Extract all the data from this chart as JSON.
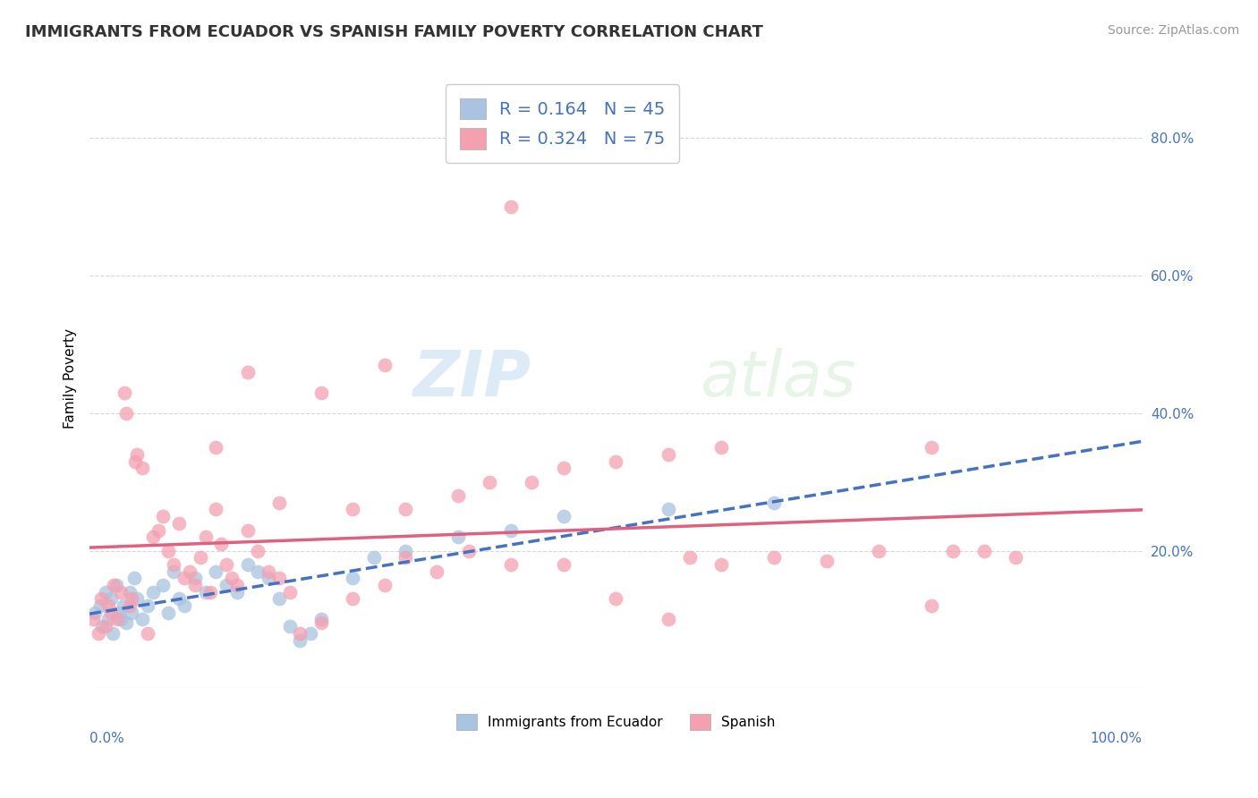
{
  "title": "IMMIGRANTS FROM ECUADOR VS SPANISH FAMILY POVERTY CORRELATION CHART",
  "source_text": "Source: ZipAtlas.com",
  "ylabel": "Family Poverty",
  "legend_r1": "R = 0.164",
  "legend_n1": "N = 45",
  "legend_r2": "R = 0.324",
  "legend_n2": "N = 75",
  "watermark_zip": "ZIP",
  "watermark_atlas": "atlas",
  "ecuador_color": "#a8c4e0",
  "spanish_color": "#f4a0b0",
  "ecuador_line_color": "#4472c4",
  "spanish_line_color": "#e06080",
  "right_axis_color": "#4472c4",
  "ecuador_points": [
    [
      0.5,
      11.0
    ],
    [
      1.0,
      12.0
    ],
    [
      1.2,
      9.0
    ],
    [
      1.5,
      14.0
    ],
    [
      1.8,
      10.0
    ],
    [
      2.0,
      13.0
    ],
    [
      2.2,
      8.0
    ],
    [
      2.5,
      15.0
    ],
    [
      2.8,
      11.0
    ],
    [
      3.0,
      10.0
    ],
    [
      3.2,
      12.0
    ],
    [
      3.5,
      9.5
    ],
    [
      3.8,
      14.0
    ],
    [
      4.0,
      11.0
    ],
    [
      4.2,
      16.0
    ],
    [
      4.5,
      13.0
    ],
    [
      5.0,
      10.0
    ],
    [
      5.5,
      12.0
    ],
    [
      6.0,
      14.0
    ],
    [
      7.0,
      15.0
    ],
    [
      7.5,
      11.0
    ],
    [
      8.0,
      17.0
    ],
    [
      8.5,
      13.0
    ],
    [
      9.0,
      12.0
    ],
    [
      10.0,
      16.0
    ],
    [
      11.0,
      14.0
    ],
    [
      12.0,
      17.0
    ],
    [
      13.0,
      15.0
    ],
    [
      14.0,
      14.0
    ],
    [
      15.0,
      18.0
    ],
    [
      16.0,
      17.0
    ],
    [
      17.0,
      16.0
    ],
    [
      18.0,
      13.0
    ],
    [
      19.0,
      9.0
    ],
    [
      20.0,
      7.0
    ],
    [
      21.0,
      8.0
    ],
    [
      22.0,
      10.0
    ],
    [
      25.0,
      16.0
    ],
    [
      27.0,
      19.0
    ],
    [
      30.0,
      20.0
    ],
    [
      35.0,
      22.0
    ],
    [
      40.0,
      23.0
    ],
    [
      45.0,
      25.0
    ],
    [
      55.0,
      26.0
    ],
    [
      65.0,
      27.0
    ]
  ],
  "spanish_points": [
    [
      0.3,
      10.0
    ],
    [
      0.8,
      8.0
    ],
    [
      1.1,
      13.0
    ],
    [
      1.5,
      9.0
    ],
    [
      1.8,
      12.0
    ],
    [
      2.0,
      11.0
    ],
    [
      2.3,
      15.0
    ],
    [
      2.6,
      10.0
    ],
    [
      3.0,
      14.0
    ],
    [
      3.3,
      43.0
    ],
    [
      3.5,
      40.0
    ],
    [
      3.8,
      12.0
    ],
    [
      4.0,
      13.0
    ],
    [
      4.3,
      33.0
    ],
    [
      4.5,
      34.0
    ],
    [
      5.0,
      32.0
    ],
    [
      5.5,
      8.0
    ],
    [
      6.0,
      22.0
    ],
    [
      6.5,
      23.0
    ],
    [
      7.0,
      25.0
    ],
    [
      7.5,
      20.0
    ],
    [
      8.0,
      18.0
    ],
    [
      8.5,
      24.0
    ],
    [
      9.0,
      16.0
    ],
    [
      9.5,
      17.0
    ],
    [
      10.0,
      15.0
    ],
    [
      10.5,
      19.0
    ],
    [
      11.0,
      22.0
    ],
    [
      11.5,
      14.0
    ],
    [
      12.0,
      35.0
    ],
    [
      12.5,
      21.0
    ],
    [
      13.0,
      18.0
    ],
    [
      13.5,
      16.0
    ],
    [
      14.0,
      15.0
    ],
    [
      15.0,
      23.0
    ],
    [
      16.0,
      20.0
    ],
    [
      17.0,
      17.0
    ],
    [
      18.0,
      16.0
    ],
    [
      19.0,
      14.0
    ],
    [
      20.0,
      8.0
    ],
    [
      22.0,
      9.5
    ],
    [
      25.0,
      13.0
    ],
    [
      28.0,
      15.0
    ],
    [
      30.0,
      19.0
    ],
    [
      33.0,
      17.0
    ],
    [
      36.0,
      20.0
    ],
    [
      40.0,
      18.0
    ],
    [
      45.0,
      18.0
    ],
    [
      50.0,
      13.0
    ],
    [
      55.0,
      10.0
    ],
    [
      57.0,
      19.0
    ],
    [
      60.0,
      18.0
    ],
    [
      65.0,
      19.0
    ],
    [
      70.0,
      18.5
    ],
    [
      75.0,
      20.0
    ],
    [
      80.0,
      12.0
    ],
    [
      82.0,
      20.0
    ],
    [
      85.0,
      20.0
    ],
    [
      88.0,
      19.0
    ],
    [
      40.0,
      70.0
    ],
    [
      28.0,
      47.0
    ],
    [
      22.0,
      43.0
    ],
    [
      15.0,
      46.0
    ],
    [
      12.0,
      26.0
    ],
    [
      18.0,
      27.0
    ],
    [
      25.0,
      26.0
    ],
    [
      30.0,
      26.0
    ],
    [
      35.0,
      28.0
    ],
    [
      38.0,
      30.0
    ],
    [
      42.0,
      30.0
    ],
    [
      45.0,
      32.0
    ],
    [
      50.0,
      33.0
    ],
    [
      55.0,
      34.0
    ],
    [
      60.0,
      35.0
    ],
    [
      80.0,
      35.0
    ]
  ],
  "ylim": [
    0,
    90
  ],
  "xlim": [
    0,
    100
  ],
  "yticks_right": [
    20,
    40,
    60,
    80
  ],
  "ytick_labels_right": [
    "20.0%",
    "40.0%",
    "60.0%",
    "80.0%"
  ],
  "background_color": "#ffffff",
  "grid_color": "#d8d8d8"
}
